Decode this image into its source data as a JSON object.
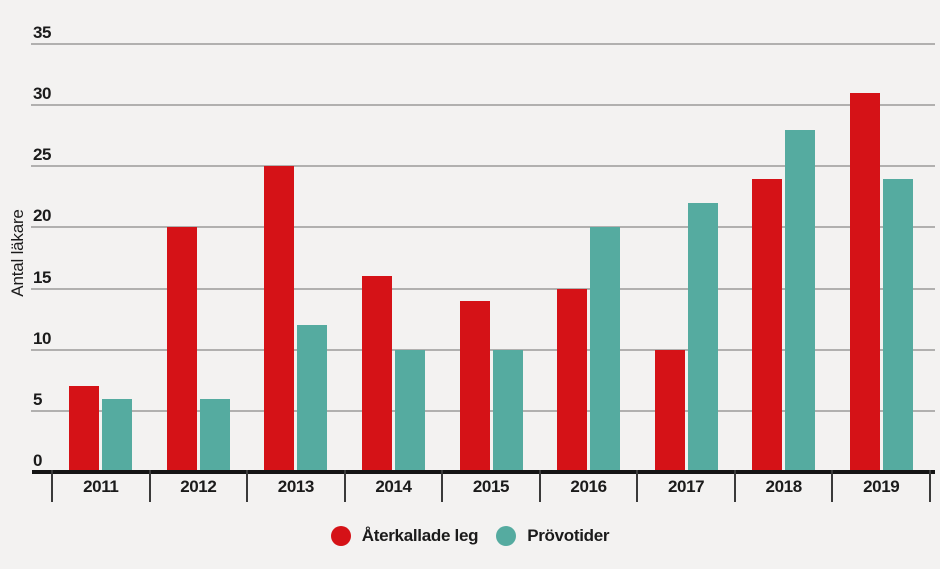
{
  "chart_data": {
    "type": "bar",
    "title": "",
    "xlabel": "",
    "ylabel": "Antal läkare",
    "categories": [
      "2011",
      "2012",
      "2013",
      "2014",
      "2015",
      "2016",
      "2017",
      "2018",
      "2019"
    ],
    "series": [
      {
        "name": "Återkallade leg",
        "color": "#d51217",
        "values": [
          7,
          20,
          25,
          16,
          14,
          15,
          10,
          24,
          31
        ]
      },
      {
        "name": "Prövotider",
        "color": "#55aba0",
        "values": [
          6,
          6,
          12,
          10,
          10,
          20,
          22,
          28,
          24
        ]
      }
    ],
    "yticks": [
      0,
      5,
      10,
      15,
      20,
      25,
      30,
      35
    ],
    "ylim": [
      0,
      35
    ],
    "grid": "horizontal-gridlines-on",
    "legend_position": "bottom-center"
  },
  "colors": {
    "background": "#f3f2f1",
    "gridline": "#b1b0af",
    "axis_line": "#141414",
    "tick_mark": "#3a3a3a",
    "text": "#1b1b1b",
    "series_red": "#d51217",
    "series_teal": "#55aba0"
  }
}
